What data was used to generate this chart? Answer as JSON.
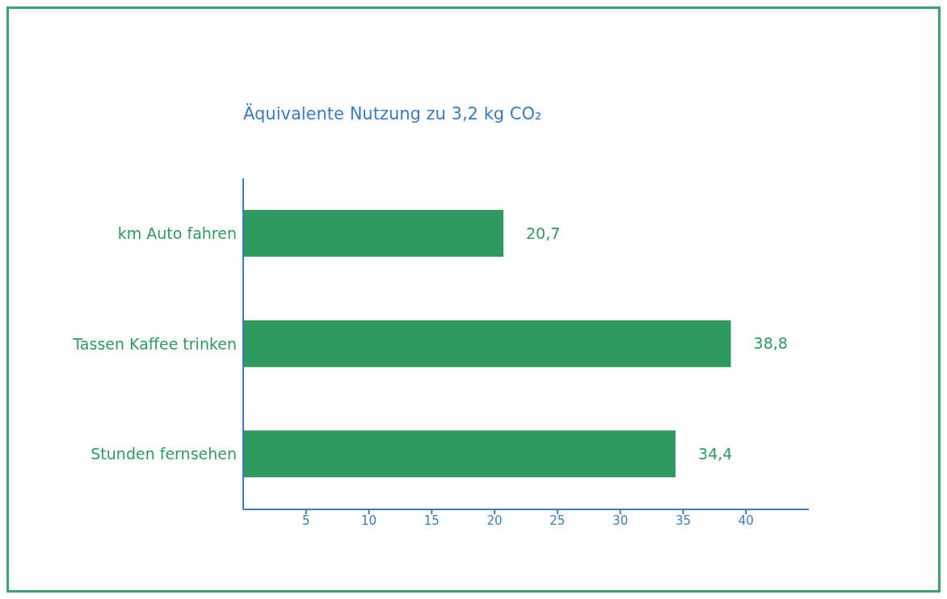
{
  "chart_data": {
    "type": "bar",
    "orientation": "horizontal",
    "title": "Äquivalente Nutzung zu 3,2 kg CO₂",
    "categories": [
      "km Auto fahren",
      "Tassen Kaffee trinken",
      "Stunden fernsehen"
    ],
    "values": [
      20.7,
      38.8,
      34.4
    ],
    "value_labels": [
      "20,7",
      "38,8",
      "34,4"
    ],
    "color": "#2f9a5e",
    "xlim": [
      0,
      45
    ],
    "xticks": [
      5,
      10,
      15,
      20,
      25,
      30,
      35,
      40
    ],
    "grid": false,
    "legend": false
  }
}
